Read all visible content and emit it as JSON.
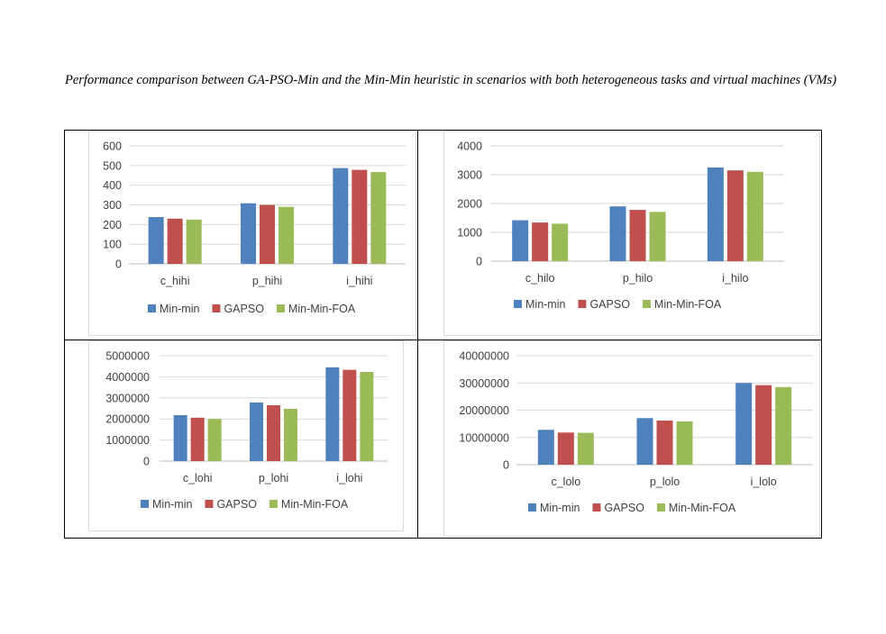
{
  "caption": "Performance comparison between GA-PSO-Min and the Min-Min heuristic in scenarios with both heterogeneous tasks and virtual machines (VMs)",
  "colors": [
    "#4f81bd",
    "#c0504d",
    "#9bbb59"
  ],
  "chart_data": [
    {
      "type": "bar",
      "categories": [
        "c_hihi",
        "p_hihi",
        "i_hihi"
      ],
      "series": [
        {
          "name": "Min-min",
          "values": [
            238,
            308,
            487
          ]
        },
        {
          "name": "GAPSO",
          "values": [
            230,
            300,
            478
          ]
        },
        {
          "name": "Min-Min-FOA",
          "values": [
            225,
            290,
            467
          ]
        }
      ],
      "yticks": [
        "0",
        "100",
        "200",
        "300",
        "400",
        "500",
        "600"
      ],
      "ylim": [
        0,
        600
      ],
      "grid": true,
      "legend": "bottom"
    },
    {
      "type": "bar",
      "categories": [
        "c_hilo",
        "p_hilo",
        "i_hilo"
      ],
      "series": [
        {
          "name": "Min-min",
          "values": [
            1420,
            1900,
            3250
          ]
        },
        {
          "name": "GAPSO",
          "values": [
            1340,
            1780,
            3150
          ]
        },
        {
          "name": "Min-Min-FOA",
          "values": [
            1300,
            1710,
            3100
          ]
        }
      ],
      "yticks": [
        "0",
        "1000",
        "2000",
        "3000",
        "4000"
      ],
      "ylim": [
        0,
        4000
      ],
      "grid": true,
      "legend": "bottom"
    },
    {
      "type": "bar",
      "categories": [
        "c_lohi",
        "p_lohi",
        "i_lohi"
      ],
      "series": [
        {
          "name": "Min-min",
          "values": [
            2180000,
            2780000,
            4450000
          ]
        },
        {
          "name": "GAPSO",
          "values": [
            2060000,
            2650000,
            4330000
          ]
        },
        {
          "name": "Min-Min-FOA",
          "values": [
            2000000,
            2480000,
            4230000
          ]
        }
      ],
      "yticks": [
        "0",
        "1000000",
        "2000000",
        "3000000",
        "4000000",
        "5000000"
      ],
      "ylim": [
        0,
        5000000
      ],
      "grid": true,
      "legend": "bottom"
    },
    {
      "type": "bar",
      "categories": [
        "c_lolo",
        "p_lolo",
        "i_lolo"
      ],
      "series": [
        {
          "name": "Min-min",
          "values": [
            12800000,
            17100000,
            30000000
          ]
        },
        {
          "name": "GAPSO",
          "values": [
            11800000,
            16200000,
            29200000
          ]
        },
        {
          "name": "Min-Min-FOA",
          "values": [
            11700000,
            15900000,
            28500000
          ]
        }
      ],
      "yticks": [
        "0",
        "10000000",
        "20000000",
        "30000000",
        "40000000"
      ],
      "ylim": [
        0,
        40000000
      ],
      "grid": true,
      "legend": "bottom"
    }
  ]
}
